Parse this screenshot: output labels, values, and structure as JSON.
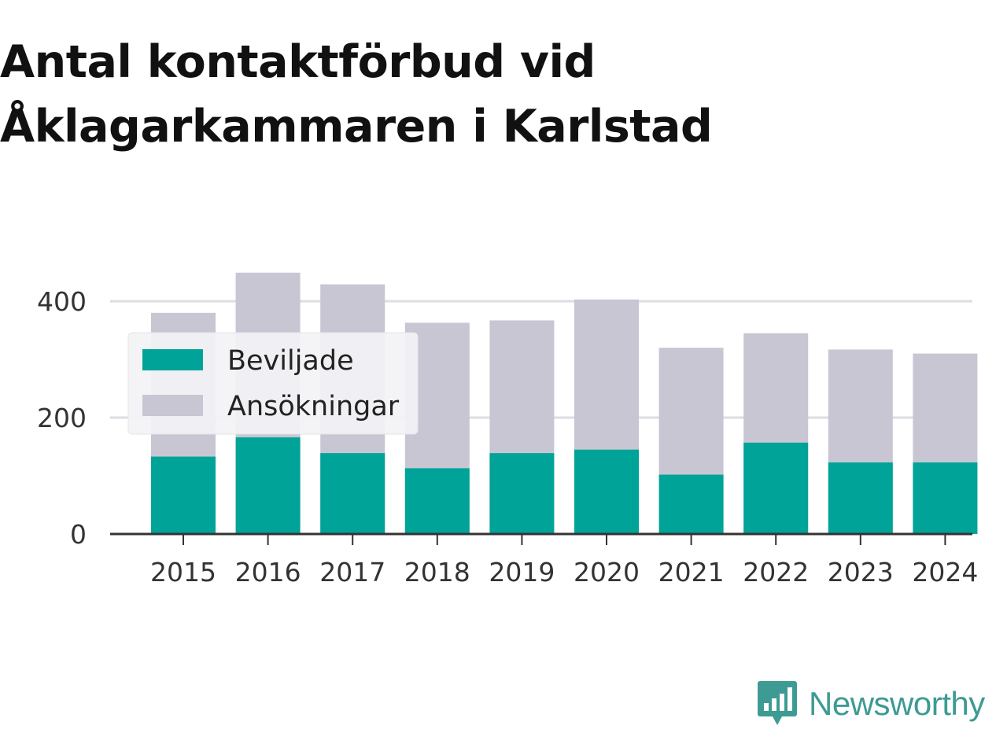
{
  "chart_data": {
    "type": "bar",
    "title": "Antal kontaktförbud vid Åklagarkammaren i Karlstad",
    "categories": [
      "2015",
      "2016",
      "2017",
      "2018",
      "2019",
      "2020",
      "2021",
      "2022",
      "2023",
      "2024"
    ],
    "series": [
      {
        "name": "Ansökningar",
        "values": [
          380,
          449,
          429,
          363,
          367,
          403,
          320,
          345,
          317,
          310
        ],
        "color": "#c8c6d2"
      },
      {
        "name": "Beviljade",
        "values": [
          133,
          166,
          139,
          113,
          139,
          145,
          102,
          157,
          123,
          123
        ],
        "color": "#00a398"
      }
    ],
    "legend_order": [
      "Beviljade",
      "Ansökningar"
    ],
    "legend_position": "top-left",
    "overlapped": true,
    "xlabel": "",
    "ylabel": "",
    "ylim": [
      0,
      450
    ],
    "yticks": [
      0,
      200,
      400
    ],
    "grid": true
  },
  "brand": {
    "name": "Newsworthy",
    "color": "#3d9b93",
    "icon": "newsworthy-logo-icon"
  }
}
